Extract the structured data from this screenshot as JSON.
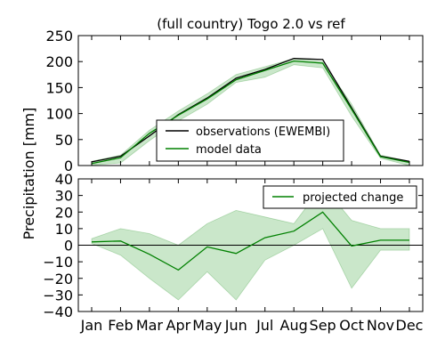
{
  "chart_data": [
    {
      "type": "line",
      "title": "(full country) Togo 2.0 vs ref",
      "ylabel": "Precipitation [mm]",
      "categories": [
        "Jan",
        "Feb",
        "Mar",
        "Apr",
        "May",
        "Jun",
        "Jul",
        "Aug",
        "Sep",
        "Oct",
        "Nov",
        "Dec"
      ],
      "ylim": [
        0,
        250
      ],
      "yticks": [
        0,
        50,
        100,
        150,
        200,
        250
      ],
      "legend_placement": "center",
      "series": [
        {
          "name": "observations (EWEMBI)",
          "color": "#000000",
          "values": [
            7,
            18,
            57,
            98,
            130,
            168,
            185,
            206,
            204,
            111,
            18,
            8
          ]
        },
        {
          "name": "model data",
          "color": "#008000",
          "values": [
            4,
            15,
            62,
            97,
            128,
            165,
            183,
            201,
            197,
            108,
            17,
            6
          ]
        }
      ],
      "band": {
        "color": "#9ed39e",
        "lower": [
          1,
          5,
          48,
          86,
          118,
          160,
          170,
          194,
          188,
          95,
          14,
          0
        ],
        "upper": [
          8,
          20,
          68,
          105,
          138,
          175,
          190,
          206,
          200,
          118,
          20,
          8
        ]
      }
    },
    {
      "type": "line",
      "xlabel": "",
      "categories": [
        "Jan",
        "Feb",
        "Mar",
        "Apr",
        "May",
        "Jun",
        "Jul",
        "Aug",
        "Sep",
        "Oct",
        "Nov",
        "Dec"
      ],
      "ylim": [
        -40,
        40
      ],
      "yticks": [
        -40,
        -30,
        -20,
        -10,
        0,
        10,
        20,
        30,
        40
      ],
      "legend_placement": "top-right",
      "zero_line": true,
      "series": [
        {
          "name": "projected change",
          "color": "#008000",
          "values": [
            2,
            2.5,
            -5.5,
            -15,
            -1,
            -5,
            4.5,
            8.5,
            20,
            -0.5,
            3,
            3
          ]
        }
      ],
      "band": {
        "color": "#9ed39e",
        "lower": [
          1,
          -6,
          -20,
          -33,
          -16,
          -33,
          -9,
          0,
          10,
          -26,
          -3,
          -3
        ],
        "upper": [
          4,
          10,
          7,
          0,
          13,
          21,
          17,
          13,
          36,
          15,
          10,
          10
        ]
      }
    }
  ]
}
